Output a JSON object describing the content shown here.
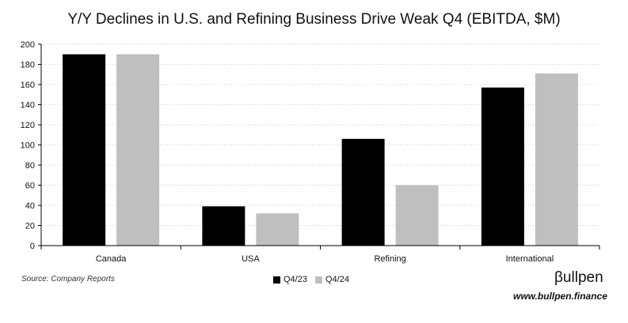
{
  "chart_data": {
    "type": "bar",
    "title": "Y/Y Declines in U.S. and Refining Business Drive Weak Q4 (EBITDA, $M)",
    "categories": [
      "Canada",
      "USA",
      "Refining",
      "International"
    ],
    "series": [
      {
        "name": "Q4/23",
        "values": [
          190,
          39,
          106,
          157
        ],
        "color": "#000000"
      },
      {
        "name": "Q4/24",
        "values": [
          190,
          32,
          60,
          171
        ],
        "color": "#bfbfbf"
      }
    ],
    "ylim": [
      0,
      200
    ],
    "yticks": [
      "0",
      "20",
      "40",
      "60",
      "80",
      "100",
      "120",
      "140",
      "160",
      "180",
      "200"
    ],
    "grid": true,
    "legend_position": "bottom-center"
  },
  "footer": {
    "source": "Source: Company Reports",
    "brand": "βullpen",
    "website": "www.bullpen.finance"
  }
}
